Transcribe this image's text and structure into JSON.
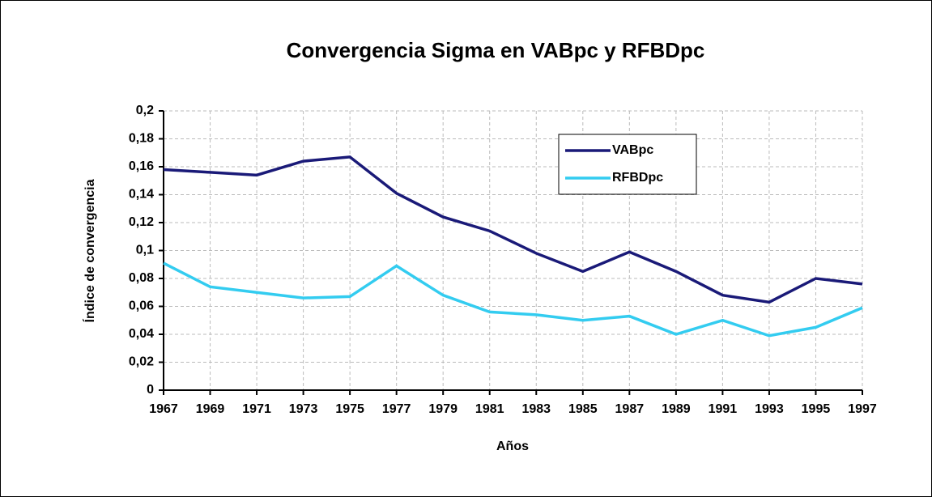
{
  "chart_data": {
    "type": "line",
    "title": "Convergencia Sigma en VABpc y RFBDpc",
    "x_label": "Años",
    "y_label": "Índice de convergencia",
    "categories": [
      "1967",
      "1969",
      "1971",
      "1973",
      "1975",
      "1977",
      "1979",
      "1981",
      "1983",
      "1985",
      "1987",
      "1989",
      "1991",
      "1993",
      "1995",
      "1997"
    ],
    "series": [
      {
        "name": "VABpc",
        "color": "#1a1a78",
        "values": [
          0.158,
          0.156,
          0.154,
          0.164,
          0.167,
          0.141,
          0.124,
          0.114,
          0.098,
          0.085,
          0.099,
          0.085,
          0.068,
          0.063,
          0.08,
          0.076
        ]
      },
      {
        "name": "RFBDpc",
        "color": "#33ccf0",
        "values": [
          0.091,
          0.074,
          0.07,
          0.066,
          0.067,
          0.089,
          0.068,
          0.056,
          0.054,
          0.05,
          0.053,
          0.04,
          0.05,
          0.039,
          0.045,
          0.059
        ]
      }
    ],
    "ylim": [
      0,
      0.2
    ],
    "yticks": [
      0,
      {
        "value": 0.02,
        "label": "0,02"
      },
      {
        "value": 0.04,
        "label": "0,04"
      },
      {
        "value": 0.06,
        "label": "0,06"
      },
      {
        "value": 0.08,
        "label": "0,08"
      },
      {
        "value": 0.1,
        "label": "0,1"
      },
      {
        "value": 0.12,
        "label": "0,12"
      },
      {
        "value": 0.14,
        "label": "0,14"
      },
      {
        "value": 0.16,
        "label": "0,16"
      },
      {
        "value": 0.18,
        "label": "0,18"
      },
      {
        "value": 0.2,
        "label": "0,2"
      }
    ],
    "grid": true,
    "legend": "upper right"
  }
}
